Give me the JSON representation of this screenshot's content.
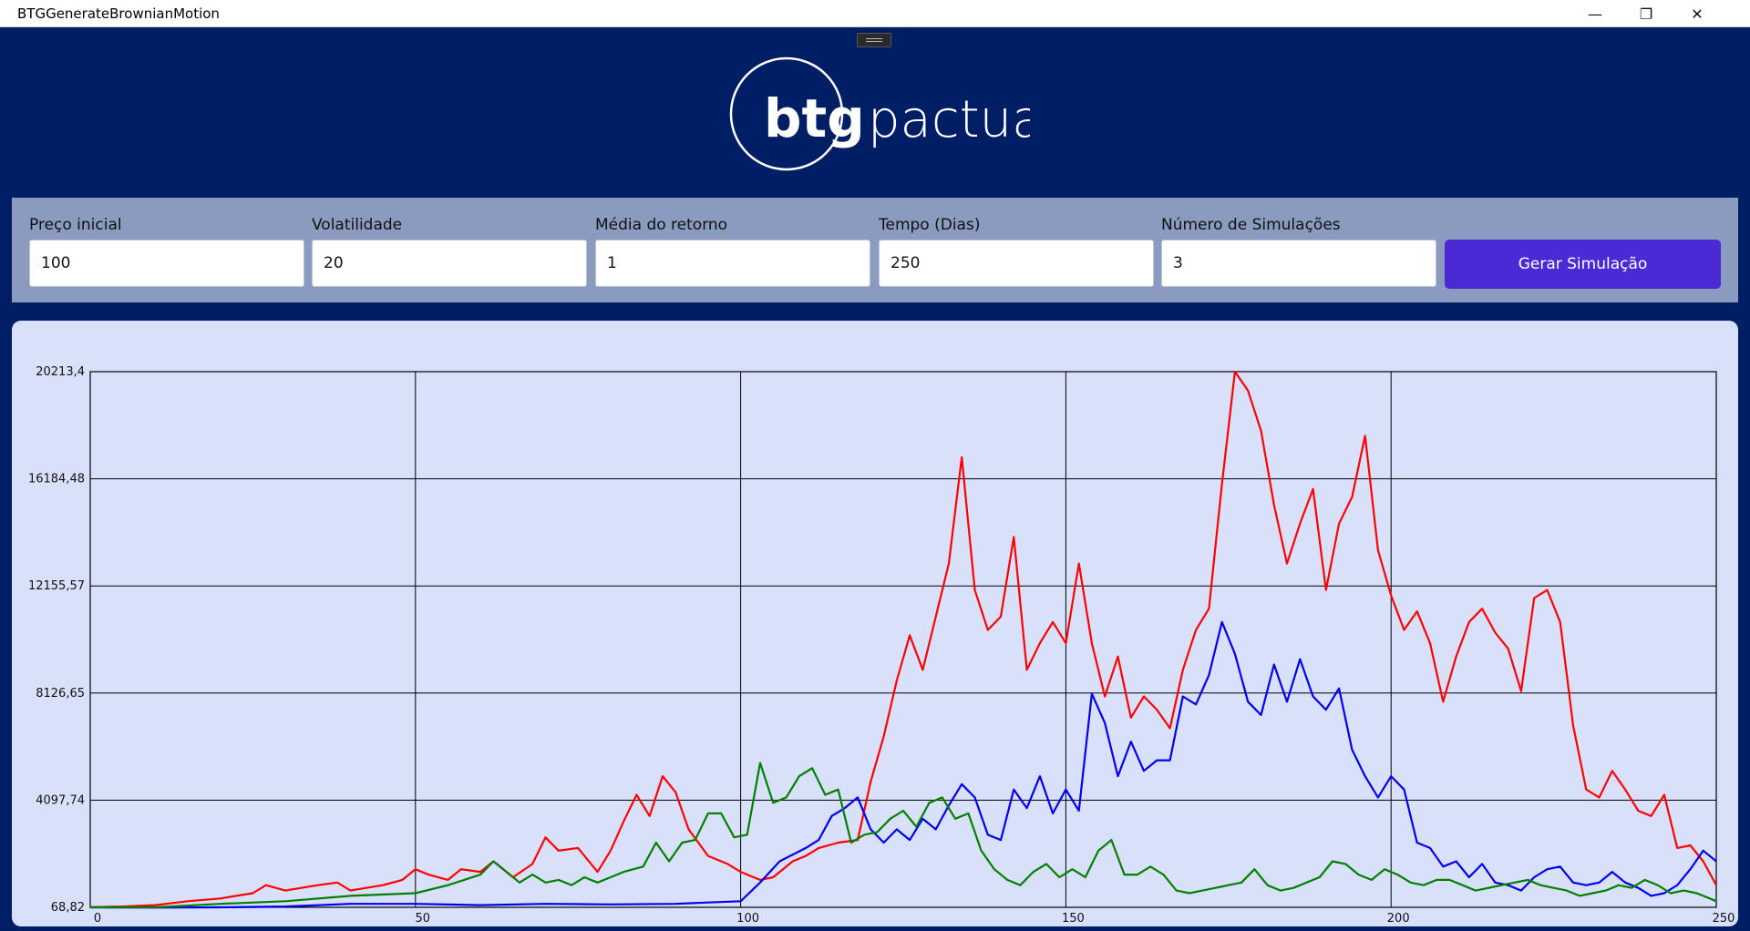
{
  "window": {
    "title": "BTGGenerateBrownianMotion",
    "minimize_glyph": "—",
    "restore_glyph": "❐",
    "close_glyph": "✕"
  },
  "brand": {
    "logo_text_bold": "btg",
    "logo_text_light": "pactual"
  },
  "form": {
    "fields": [
      {
        "label": "Preço inicial",
        "value": "100"
      },
      {
        "label": "Volatilidade",
        "value": "20"
      },
      {
        "label": "Média do retorno",
        "value": "1"
      },
      {
        "label": "Tempo (Dias)",
        "value": "250"
      },
      {
        "label": "Número de Simulações",
        "value": "3"
      }
    ],
    "submit_label": "Gerar Simulação"
  },
  "colors": {
    "background": "#001e64",
    "form_panel": "#8a9bbf",
    "button": "#4b2ad6",
    "chart_panel": "#d9e0fa"
  },
  "chart_data": {
    "type": "line",
    "xlim": [
      0,
      250
    ],
    "ylim": [
      68.82,
      20213.4
    ],
    "x_ticks": [
      "0",
      "50",
      "100",
      "150",
      "200",
      "250"
    ],
    "y_ticks": [
      "68,82",
      "4097,74",
      "8126,65",
      "12155,57",
      "16184,48",
      "20213,4"
    ],
    "grid": true,
    "series": [
      {
        "color": "#ff0000",
        "points": [
          [
            0,
            70
          ],
          [
            5,
            100
          ],
          [
            10,
            150
          ],
          [
            15,
            300
          ],
          [
            20,
            400
          ],
          [
            25,
            600
          ],
          [
            27,
            900
          ],
          [
            30,
            700
          ],
          [
            35,
            900
          ],
          [
            38,
            1000
          ],
          [
            40,
            700
          ],
          [
            45,
            900
          ],
          [
            48,
            1100
          ],
          [
            50,
            1500
          ],
          [
            52,
            1300
          ],
          [
            55,
            1100
          ],
          [
            57,
            1500
          ],
          [
            60,
            1400
          ],
          [
            62,
            1800
          ],
          [
            65,
            1200
          ],
          [
            68,
            1700
          ],
          [
            70,
            2700
          ],
          [
            72,
            2200
          ],
          [
            75,
            2300
          ],
          [
            78,
            1400
          ],
          [
            80,
            2200
          ],
          [
            82,
            3300
          ],
          [
            84,
            4300
          ],
          [
            86,
            3500
          ],
          [
            88,
            5000
          ],
          [
            90,
            4400
          ],
          [
            92,
            3000
          ],
          [
            95,
            2000
          ],
          [
            98,
            1700
          ],
          [
            100,
            1400
          ],
          [
            103,
            1100
          ],
          [
            105,
            1200
          ],
          [
            108,
            1800
          ],
          [
            110,
            2000
          ],
          [
            112,
            2300
          ],
          [
            115,
            2500
          ],
          [
            118,
            2600
          ],
          [
            120,
            4800
          ],
          [
            122,
            6500
          ],
          [
            124,
            8600
          ],
          [
            126,
            10300
          ],
          [
            128,
            9000
          ],
          [
            130,
            11000
          ],
          [
            132,
            13000
          ],
          [
            134,
            17000
          ],
          [
            136,
            12000
          ],
          [
            138,
            10500
          ],
          [
            140,
            11000
          ],
          [
            142,
            14000
          ],
          [
            144,
            9000
          ],
          [
            146,
            10000
          ],
          [
            148,
            10800
          ],
          [
            150,
            10000
          ],
          [
            152,
            13000
          ],
          [
            154,
            10000
          ],
          [
            156,
            8000
          ],
          [
            158,
            9500
          ],
          [
            160,
            7200
          ],
          [
            162,
            8000
          ],
          [
            164,
            7500
          ],
          [
            166,
            6800
          ],
          [
            168,
            9000
          ],
          [
            170,
            10500
          ],
          [
            172,
            11300
          ],
          [
            174,
            16000
          ],
          [
            176,
            20213
          ],
          [
            178,
            19500
          ],
          [
            180,
            18000
          ],
          [
            182,
            15200
          ],
          [
            184,
            13000
          ],
          [
            186,
            14500
          ],
          [
            188,
            15800
          ],
          [
            190,
            12000
          ],
          [
            192,
            14500
          ],
          [
            194,
            15500
          ],
          [
            196,
            17800
          ],
          [
            198,
            13500
          ],
          [
            200,
            11800
          ],
          [
            202,
            10500
          ],
          [
            204,
            11200
          ],
          [
            206,
            10000
          ],
          [
            208,
            7800
          ],
          [
            210,
            9500
          ],
          [
            212,
            10800
          ],
          [
            214,
            11300
          ],
          [
            216,
            10400
          ],
          [
            218,
            9800
          ],
          [
            220,
            8200
          ],
          [
            222,
            11700
          ],
          [
            224,
            12000
          ],
          [
            226,
            10800
          ],
          [
            228,
            6900
          ],
          [
            230,
            4500
          ],
          [
            232,
            4200
          ],
          [
            234,
            5200
          ],
          [
            236,
            4500
          ],
          [
            238,
            3700
          ],
          [
            240,
            3500
          ],
          [
            242,
            4300
          ],
          [
            244,
            2300
          ],
          [
            246,
            2400
          ],
          [
            248,
            1800
          ],
          [
            250,
            900
          ]
        ]
      },
      {
        "color": "#0000ee",
        "points": [
          [
            0,
            70
          ],
          [
            10,
            60
          ],
          [
            20,
            70
          ],
          [
            30,
            100
          ],
          [
            40,
            200
          ],
          [
            50,
            200
          ],
          [
            60,
            150
          ],
          [
            70,
            200
          ],
          [
            80,
            180
          ],
          [
            90,
            200
          ],
          [
            95,
            250
          ],
          [
            100,
            300
          ],
          [
            103,
            1000
          ],
          [
            106,
            1800
          ],
          [
            110,
            2300
          ],
          [
            112,
            2600
          ],
          [
            114,
            3500
          ],
          [
            116,
            3800
          ],
          [
            118,
            4200
          ],
          [
            120,
            3000
          ],
          [
            122,
            2500
          ],
          [
            124,
            3000
          ],
          [
            126,
            2600
          ],
          [
            128,
            3400
          ],
          [
            130,
            3000
          ],
          [
            132,
            3900
          ],
          [
            134,
            4700
          ],
          [
            136,
            4200
          ],
          [
            138,
            2800
          ],
          [
            140,
            2600
          ],
          [
            142,
            4500
          ],
          [
            144,
            3800
          ],
          [
            146,
            5000
          ],
          [
            148,
            3600
          ],
          [
            150,
            4500
          ],
          [
            152,
            3700
          ],
          [
            154,
            8100
          ],
          [
            156,
            7000
          ],
          [
            158,
            5000
          ],
          [
            160,
            6300
          ],
          [
            162,
            5200
          ],
          [
            164,
            5600
          ],
          [
            166,
            5600
          ],
          [
            168,
            8000
          ],
          [
            170,
            7700
          ],
          [
            172,
            8800
          ],
          [
            174,
            10800
          ],
          [
            176,
            9600
          ],
          [
            178,
            7800
          ],
          [
            180,
            7300
          ],
          [
            182,
            9200
          ],
          [
            184,
            7800
          ],
          [
            186,
            9400
          ],
          [
            188,
            8000
          ],
          [
            190,
            7500
          ],
          [
            192,
            8300
          ],
          [
            194,
            6000
          ],
          [
            196,
            5000
          ],
          [
            198,
            4200
          ],
          [
            200,
            5000
          ],
          [
            202,
            4500
          ],
          [
            204,
            2500
          ],
          [
            206,
            2300
          ],
          [
            208,
            1600
          ],
          [
            210,
            1800
          ],
          [
            212,
            1200
          ],
          [
            214,
            1700
          ],
          [
            216,
            1000
          ],
          [
            218,
            900
          ],
          [
            220,
            700
          ],
          [
            222,
            1200
          ],
          [
            224,
            1500
          ],
          [
            226,
            1600
          ],
          [
            228,
            1000
          ],
          [
            230,
            900
          ],
          [
            232,
            1000
          ],
          [
            234,
            1400
          ],
          [
            236,
            1000
          ],
          [
            238,
            800
          ],
          [
            240,
            500
          ],
          [
            242,
            600
          ],
          [
            244,
            900
          ],
          [
            246,
            1500
          ],
          [
            248,
            2200
          ],
          [
            250,
            1800
          ]
        ]
      },
      {
        "color": "#008000",
        "points": [
          [
            0,
            70
          ],
          [
            10,
            70
          ],
          [
            20,
            200
          ],
          [
            30,
            300
          ],
          [
            40,
            500
          ],
          [
            50,
            600
          ],
          [
            55,
            900
          ],
          [
            60,
            1300
          ],
          [
            62,
            1800
          ],
          [
            64,
            1400
          ],
          [
            66,
            1000
          ],
          [
            68,
            1300
          ],
          [
            70,
            1000
          ],
          [
            72,
            1100
          ],
          [
            74,
            900
          ],
          [
            76,
            1200
          ],
          [
            78,
            1000
          ],
          [
            80,
            1200
          ],
          [
            82,
            1400
          ],
          [
            85,
            1600
          ],
          [
            87,
            2500
          ],
          [
            89,
            1800
          ],
          [
            91,
            2500
          ],
          [
            93,
            2600
          ],
          [
            95,
            3600
          ],
          [
            97,
            3600
          ],
          [
            99,
            2700
          ],
          [
            101,
            2800
          ],
          [
            103,
            5500
          ],
          [
            105,
            4000
          ],
          [
            107,
            4200
          ],
          [
            109,
            5000
          ],
          [
            111,
            5300
          ],
          [
            113,
            4300
          ],
          [
            115,
            4500
          ],
          [
            117,
            2500
          ],
          [
            119,
            2800
          ],
          [
            121,
            2900
          ],
          [
            123,
            3400
          ],
          [
            125,
            3700
          ],
          [
            127,
            3100
          ],
          [
            129,
            4000
          ],
          [
            131,
            4200
          ],
          [
            133,
            3400
          ],
          [
            135,
            3600
          ],
          [
            137,
            2200
          ],
          [
            139,
            1500
          ],
          [
            141,
            1100
          ],
          [
            143,
            900
          ],
          [
            145,
            1400
          ],
          [
            147,
            1700
          ],
          [
            149,
            1200
          ],
          [
            151,
            1500
          ],
          [
            153,
            1200
          ],
          [
            155,
            2200
          ],
          [
            157,
            2600
          ],
          [
            159,
            1300
          ],
          [
            161,
            1300
          ],
          [
            163,
            1600
          ],
          [
            165,
            1300
          ],
          [
            167,
            700
          ],
          [
            169,
            600
          ],
          [
            171,
            700
          ],
          [
            173,
            800
          ],
          [
            175,
            900
          ],
          [
            177,
            1000
          ],
          [
            179,
            1500
          ],
          [
            181,
            900
          ],
          [
            183,
            700
          ],
          [
            185,
            800
          ],
          [
            187,
            1000
          ],
          [
            189,
            1200
          ],
          [
            191,
            1800
          ],
          [
            193,
            1700
          ],
          [
            195,
            1300
          ],
          [
            197,
            1100
          ],
          [
            199,
            1500
          ],
          [
            201,
            1300
          ],
          [
            203,
            1000
          ],
          [
            205,
            900
          ],
          [
            207,
            1100
          ],
          [
            209,
            1100
          ],
          [
            211,
            900
          ],
          [
            213,
            700
          ],
          [
            215,
            800
          ],
          [
            217,
            900
          ],
          [
            219,
            1000
          ],
          [
            221,
            1100
          ],
          [
            223,
            900
          ],
          [
            225,
            800
          ],
          [
            227,
            700
          ],
          [
            229,
            500
          ],
          [
            231,
            600
          ],
          [
            233,
            700
          ],
          [
            235,
            900
          ],
          [
            237,
            800
          ],
          [
            239,
            1100
          ],
          [
            241,
            900
          ],
          [
            243,
            600
          ],
          [
            245,
            700
          ],
          [
            247,
            600
          ],
          [
            249,
            400
          ],
          [
            250,
            300
          ]
        ]
      }
    ]
  }
}
